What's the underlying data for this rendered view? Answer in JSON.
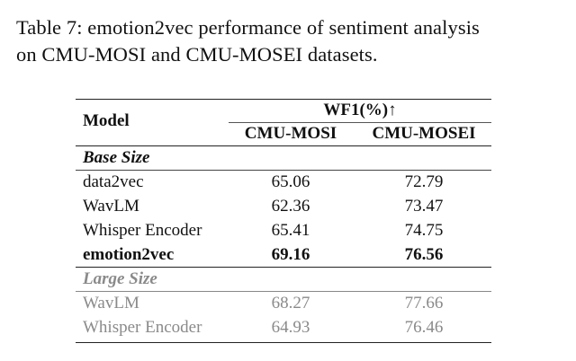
{
  "caption": {
    "line1": "Table 7: emotion2vec performance of sentiment analysis",
    "line2": "on CMU-MOSI and CMU-MOSEI datasets."
  },
  "table": {
    "header": {
      "model": "Model",
      "metric": "WF1(%)↑",
      "col1": "CMU-MOSI",
      "col2": "CMU-MOSEI"
    },
    "base_section": "Base Size",
    "base_rows": [
      {
        "model": "data2vec",
        "mosi": "65.06",
        "mosei": "72.79"
      },
      {
        "model": "WavLM",
        "mosi": "62.36",
        "mosei": "73.47"
      },
      {
        "model": "Whisper Encoder",
        "mosi": "65.41",
        "mosei": "74.75"
      },
      {
        "model": "emotion2vec",
        "mosi": "69.16",
        "mosei": "76.56"
      }
    ],
    "large_section": "Large Size",
    "large_rows": [
      {
        "model": "WavLM",
        "mosi": "68.27",
        "mosei": "77.66"
      },
      {
        "model": "Whisper Encoder",
        "mosi": "64.93",
        "mosei": "76.46"
      }
    ]
  }
}
